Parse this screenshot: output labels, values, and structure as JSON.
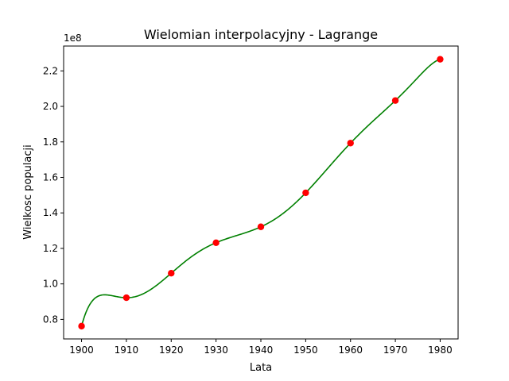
{
  "chart_data": {
    "type": "line",
    "title": "Wielomian interpolacyjny - Lagrange",
    "xlabel": "Lata",
    "ylabel": "Wielkosc populacji",
    "y_offset_label": "1e8",
    "xlim": [
      1896,
      1984
    ],
    "ylim": [
      0.69,
      2.34
    ],
    "y_scale_factor": 100000000,
    "x_ticks": [
      1900,
      1910,
      1920,
      1930,
      1940,
      1950,
      1960,
      1970,
      1980
    ],
    "y_ticks": [
      0.8,
      1.0,
      1.2,
      1.4,
      1.6,
      1.8,
      2.0,
      2.2
    ],
    "grid": false,
    "series": [
      {
        "type": "line",
        "color": "#008000",
        "x": [
          1900,
          1910,
          1920,
          1930,
          1940,
          1950,
          1960,
          1970,
          1980
        ],
        "y": [
          76212168,
          92228496,
          106021537,
          123202624,
          132164569,
          151325798,
          179323175,
          203302031,
          226542199
        ]
      },
      {
        "type": "scatter",
        "color": "#ff0000",
        "x": [
          1900,
          1910,
          1920,
          1930,
          1940,
          1950,
          1960,
          1970,
          1980
        ],
        "y": [
          76212168,
          92228496,
          106021537,
          123202624,
          132164569,
          151325798,
          179323175,
          203302031,
          226542199
        ]
      }
    ]
  }
}
